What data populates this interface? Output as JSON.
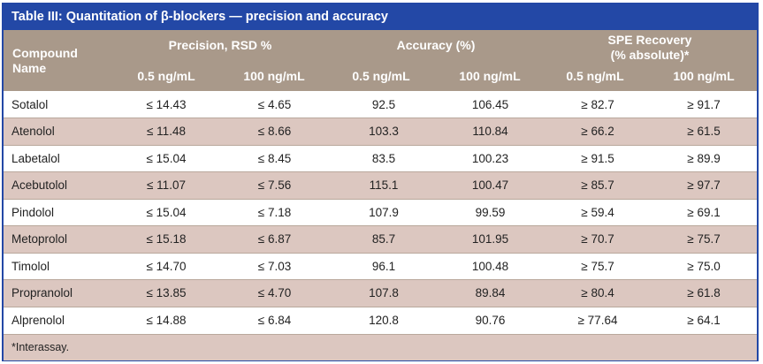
{
  "title": "Table III: Quantitation of β-blockers — precision and accuracy",
  "header": {
    "compound_line1": "Compound",
    "compound_line2": "Name",
    "precision": "Precision, RSD %",
    "accuracy": "Accuracy (%)",
    "spe_line1": "SPE Recovery",
    "spe_line2": "(% absolute)*",
    "sub": [
      "0.5 ng/mL",
      "100 ng/mL",
      "0.5 ng/mL",
      "100 ng/mL",
      "0.5 ng/mL",
      "100 ng/mL"
    ]
  },
  "rows": [
    {
      "name": "Sotalol",
      "values": [
        "≤ 14.43",
        "≤ 4.65",
        "92.5",
        "106.45",
        "≥ 82.7",
        "≥ 91.7"
      ]
    },
    {
      "name": "Atenolol",
      "values": [
        "≤ 11.48",
        "≤ 8.66",
        "103.3",
        "110.84",
        "≥ 66.2",
        "≥ 61.5"
      ]
    },
    {
      "name": "Labetalol",
      "values": [
        "≤ 15.04",
        "≤ 8.45",
        "83.5",
        "100.23",
        "≥ 91.5",
        "≥ 89.9"
      ]
    },
    {
      "name": "Acebutolol",
      "values": [
        "≤ 11.07",
        "≤ 7.56",
        "115.1",
        "100.47",
        "≥ 85.7",
        "≥ 97.7"
      ]
    },
    {
      "name": "Pindolol",
      "values": [
        "≤ 15.04",
        "≤ 7.18",
        "107.9",
        "99.59",
        "≥ 59.4",
        "≥ 69.1"
      ]
    },
    {
      "name": "Metoprolol",
      "values": [
        "≤ 15.18",
        "≤ 6.87",
        "85.7",
        "101.95",
        "≥ 70.7",
        "≥ 75.7"
      ]
    },
    {
      "name": "Timolol",
      "values": [
        "≤ 14.70",
        "≤ 7.03",
        "96.1",
        "100.48",
        "≥ 75.7",
        "≥ 75.0"
      ]
    },
    {
      "name": "Propranolol",
      "values": [
        "≤ 13.85",
        "≤ 4.70",
        "107.8",
        "89.84",
        "≥ 80.4",
        "≥ 61.8"
      ]
    },
    {
      "name": "Alprenolol",
      "values": [
        "≤ 14.88",
        "≤ 6.84",
        "120.8",
        "90.76",
        "≥ 77.64",
        "≥ 64.1"
      ]
    }
  ],
  "footnote": "*Interassay."
}
